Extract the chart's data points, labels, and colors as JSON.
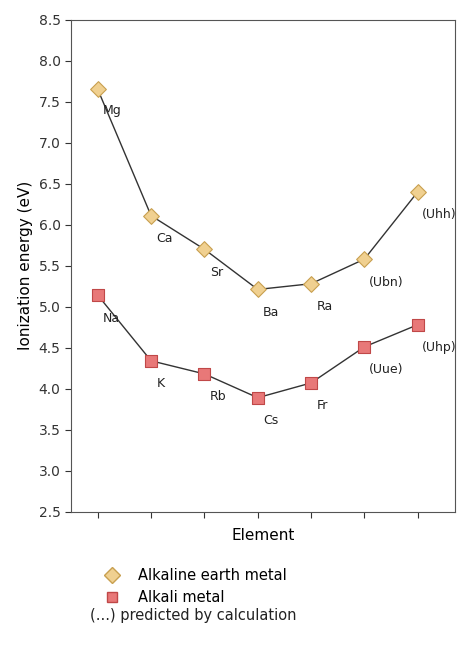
{
  "alkaline_earth": {
    "x": [
      1,
      2,
      3,
      4,
      5,
      6,
      7
    ],
    "y": [
      7.65,
      6.11,
      5.7,
      5.21,
      5.28,
      5.58,
      6.4
    ],
    "labels": [
      "Mg",
      "Ca",
      "Sr",
      "Ba",
      "Ra",
      "(Ubn)",
      "(Uhh)"
    ],
    "color": "#f0d090",
    "edgecolor": "#c8a050",
    "marker": "D",
    "markersize": 8
  },
  "alkali": {
    "x": [
      1,
      2,
      3,
      4,
      5,
      6,
      7
    ],
    "y": [
      5.14,
      4.34,
      4.18,
      3.89,
      4.07,
      4.51,
      4.78
    ],
    "labels": [
      "Na",
      "K",
      "Rb",
      "Cs",
      "Fr",
      "(Uue)",
      "(Uhp)"
    ],
    "color": "#e87878",
    "edgecolor": "#c04848",
    "marker": "s",
    "markersize": 8
  },
  "xlabel": "Element",
  "ylabel": "Ionization energy (eV)",
  "ylim": [
    2.5,
    8.5
  ],
  "xlim": [
    0.5,
    7.7
  ],
  "yticks": [
    2.5,
    3.0,
    3.5,
    4.0,
    4.5,
    5.0,
    5.5,
    6.0,
    6.5,
    7.0,
    7.5,
    8.0,
    8.5
  ],
  "xticks": [
    1,
    2,
    3,
    4,
    5,
    6,
    7
  ],
  "background_color": "#ffffff",
  "plot_bg_color": "#ffffff",
  "line_color": "#333333",
  "legend_labels": [
    "Alkaline earth metal",
    "Alkali metal"
  ],
  "legend_note": "(...) predicted by calculation",
  "label_configs_ae": [
    [
      "Mg",
      1,
      7.65,
      0.1,
      -0.18
    ],
    [
      "Ca",
      2,
      6.11,
      0.1,
      -0.2
    ],
    [
      "Sr",
      3,
      5.7,
      0.1,
      -0.2
    ],
    [
      "Ba",
      4,
      5.21,
      0.1,
      -0.2
    ],
    [
      "Ra",
      5,
      5.28,
      0.1,
      -0.2
    ],
    [
      "(Ubn)",
      6,
      5.58,
      0.08,
      -0.2
    ],
    [
      "(Uhh)",
      7,
      6.4,
      0.08,
      -0.2
    ]
  ],
  "label_configs_ak": [
    [
      "Na",
      1,
      5.14,
      0.1,
      -0.2
    ],
    [
      "K",
      2,
      4.34,
      0.1,
      -0.2
    ],
    [
      "Rb",
      3,
      4.18,
      0.1,
      -0.2
    ],
    [
      "Cs",
      4,
      3.89,
      0.1,
      -0.2
    ],
    [
      "Fr",
      5,
      4.07,
      0.1,
      -0.2
    ],
    [
      "(Uue)",
      6,
      4.51,
      0.08,
      -0.2
    ],
    [
      "(Uhp)",
      7,
      4.78,
      0.08,
      -0.2
    ]
  ]
}
